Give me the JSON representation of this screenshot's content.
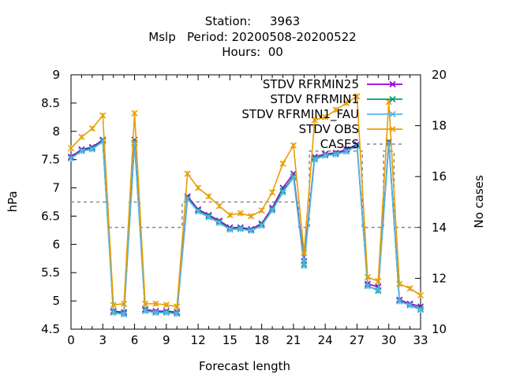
{
  "chart_data": {
    "type": "line",
    "title_lines": [
      "Station:     3963",
      "Mslp   Period: 20200508-20200522",
      "Hours:  00"
    ],
    "xlabel": "Forecast length",
    "ylabel": "hPa",
    "y2label": "No cases",
    "xlim": [
      0,
      33
    ],
    "ylim": [
      4.5,
      9
    ],
    "y2lim": [
      10,
      20
    ],
    "xticks": [
      0,
      3,
      6,
      9,
      12,
      15,
      18,
      21,
      24,
      27,
      30,
      33
    ],
    "yticks": [
      4.5,
      5,
      5.5,
      6,
      6.5,
      7,
      7.5,
      8,
      8.5,
      9
    ],
    "y2ticks": [
      10,
      12,
      14,
      16,
      18,
      20
    ],
    "grid": false,
    "legend_position": "top-right",
    "x": [
      0,
      1,
      2,
      3,
      4,
      5,
      6,
      7,
      8,
      9,
      10,
      11,
      12,
      13,
      14,
      15,
      16,
      17,
      18,
      19,
      20,
      21,
      22,
      23,
      24,
      25,
      26,
      27,
      28,
      29,
      30,
      31,
      32,
      33
    ],
    "series": [
      {
        "name": "STDV RFRMIN25",
        "color": "#9400d3",
        "marker": "x",
        "values": [
          7.55,
          7.68,
          7.72,
          7.85,
          4.82,
          4.8,
          7.85,
          4.85,
          4.82,
          4.82,
          4.8,
          6.85,
          6.62,
          6.52,
          6.42,
          6.3,
          6.3,
          6.27,
          6.37,
          6.65,
          7.0,
          7.25,
          5.7,
          7.55,
          7.6,
          7.62,
          7.68,
          7.77,
          5.3,
          5.25,
          7.82,
          5.02,
          4.95,
          4.9
        ]
      },
      {
        "name": "STDV RFRMIN1",
        "color": "#009e73",
        "marker": "x",
        "values": [
          7.53,
          7.66,
          7.7,
          7.83,
          4.8,
          4.78,
          7.8,
          4.83,
          4.8,
          4.8,
          4.78,
          6.82,
          6.6,
          6.5,
          6.4,
          6.27,
          6.28,
          6.25,
          6.35,
          6.62,
          6.95,
          7.2,
          5.65,
          7.52,
          7.58,
          7.6,
          7.65,
          7.75,
          5.27,
          5.18,
          7.8,
          5.0,
          4.93,
          4.86
        ]
      },
      {
        "name": "STDV RFRMIN1_FAU",
        "color": "#56b4e9",
        "marker": "x",
        "values": [
          7.52,
          7.65,
          7.68,
          7.82,
          4.79,
          4.76,
          7.78,
          4.82,
          4.79,
          4.79,
          4.77,
          6.8,
          6.58,
          6.48,
          6.38,
          6.26,
          6.27,
          6.24,
          6.33,
          6.6,
          6.92,
          7.18,
          5.62,
          7.5,
          7.57,
          7.59,
          7.64,
          7.74,
          5.26,
          5.2,
          7.78,
          4.99,
          4.92,
          4.84
        ]
      },
      {
        "name": "STDV OBS",
        "color": "#e69f00",
        "marker": "x",
        "values": [
          7.7,
          7.9,
          8.05,
          8.28,
          4.93,
          4.95,
          8.32,
          4.95,
          4.95,
          4.93,
          4.9,
          7.25,
          7.0,
          6.85,
          6.68,
          6.52,
          6.55,
          6.5,
          6.6,
          6.92,
          7.43,
          7.75,
          5.85,
          8.2,
          8.25,
          8.38,
          8.5,
          8.62,
          5.42,
          5.35,
          8.52,
          5.3,
          5.22,
          5.1
        ]
      }
    ],
    "cases": {
      "name": "CASES",
      "color": "#888888",
      "axis": "y2",
      "values": [
        15,
        15,
        15,
        15,
        14,
        14,
        15,
        14,
        14,
        14,
        14,
        15,
        15,
        15,
        15,
        15,
        15,
        15,
        15,
        15,
        15,
        15,
        14,
        17,
        17,
        17,
        17,
        17,
        14,
        14,
        17,
        14,
        14,
        14
      ]
    }
  }
}
